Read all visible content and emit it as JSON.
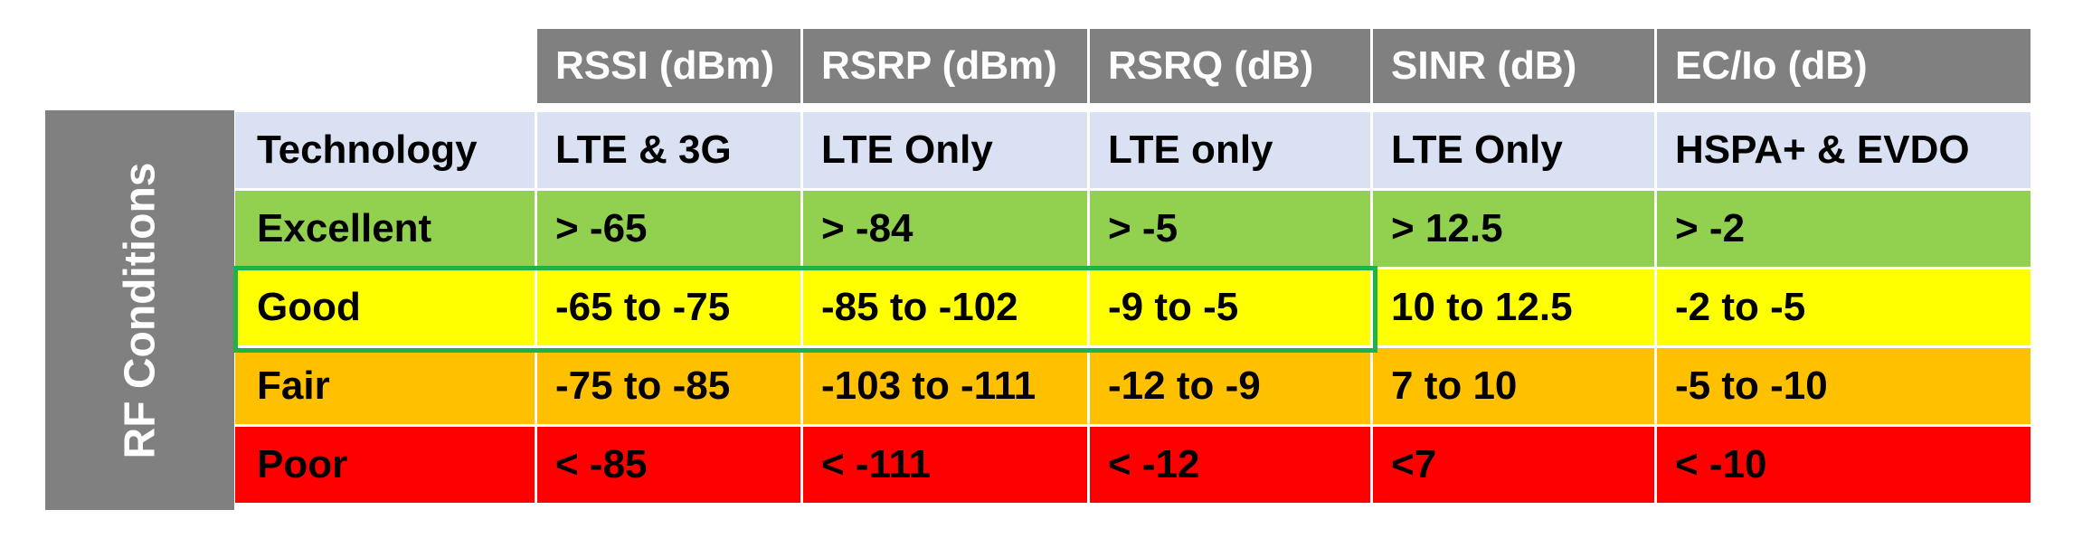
{
  "side_label": "RF Conditions",
  "columns": [
    "RSSI (dBm)",
    "RSRP (dBm)",
    "RSRQ (dB)",
    "SINR (dB)",
    "EC/Io (dB)"
  ],
  "rows": [
    {
      "label": "Technology",
      "values": [
        "LTE & 3G",
        "LTE Only",
        "LTE only",
        "LTE Only",
        "HSPA+ & EVDO"
      ],
      "color": "#d9e1f2"
    },
    {
      "label": "Excellent",
      "values": [
        "> -65",
        "> -84",
        "> -5",
        "> 12.5",
        "> -2"
      ],
      "color": "#92d050"
    },
    {
      "label": "Good",
      "values": [
        "-65 to -75",
        "-85 to -102",
        "-9 to -5",
        "10 to 12.5",
        "-2 to -5"
      ],
      "color": "#ffff00"
    },
    {
      "label": "Fair",
      "values": [
        "-75 to -85",
        "-103 to -111",
        "-12 to -9",
        "7 to 10",
        "-5 to -10"
      ],
      "color": "#ffc000"
    },
    {
      "label": "Poor",
      "values": [
        "< -85",
        "< -111",
        "< -12",
        "<7",
        "< -10"
      ],
      "color": "#ff0000"
    }
  ],
  "highlight_color": "#1fb14c",
  "grid_color": "#ffffff"
}
